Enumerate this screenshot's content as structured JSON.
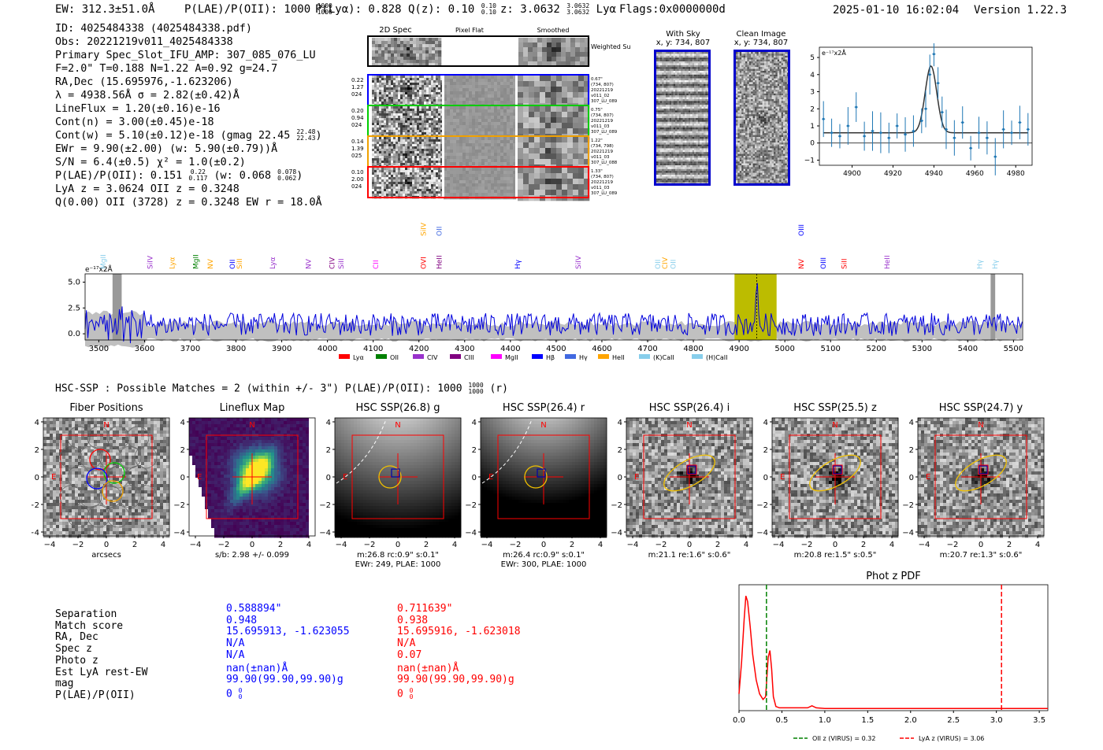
{
  "header": {
    "ew": "EW: 312.3±51.0Å",
    "plae_label": "P(LAE)/P(OII): 1000",
    "plae_sup": "1000",
    "plae_sub": "1000",
    "plya": "P(Lyα): 0.828",
    "qz_label": "Q(z): 0.10",
    "qz_sup": "0.10",
    "qz_sub": "0.10",
    "z_label": "z: 3.0632",
    "z_sup": "3.0632",
    "z_sub": "3.0632",
    "z_line": "Lyα",
    "flags": "Flags:0x0000000d",
    "datetime": "2025-01-10 16:02:04",
    "version": "Version 1.22.3"
  },
  "info": {
    "id": "ID: 4025484338 (4025484338.pdf)",
    "obs": "Obs: 20221219v011_4025484338",
    "primary": "Primary Spec_Slot_IFU_AMP: 307_085_076_LU",
    "fiber": "F=2.0\"  T=0.188  N=1.22  A=0.92  g=24.7",
    "radec": "RA,Dec (15.695976,-1.623206)",
    "lambda": "λ = 4938.56Å  σ = 2.82(±0.42)Å",
    "lineflux": "LineFlux = 1.20(±0.16)e-16",
    "contn": "Cont(n) = 3.00(±0.45)e-18",
    "contw": "Cont(w) = 5.10(±0.12)e-18 (gmag 22.45",
    "contw_sup": "22.48",
    "contw_sub": "22.43",
    "contw_end": ")",
    "ewr": "EWr = 9.90(±2.00) (w: 5.90(±0.79))Å",
    "sn": "S/N = 6.4(±0.5)  χ² = 1.0(±0.2)",
    "plae": "P(LAE)/P(OII): 0.151",
    "plae_sup": "0.22",
    "plae_sub": "0.117",
    "plae_w": "(w: 0.068",
    "plae_w_sup": "0.078",
    "plae_w_sub": "0.062",
    "plae_end": ")",
    "lya_z": "LyA z = 3.0624  OII z = 0.3248",
    "q": "Q(0.00) OII (3728) z = 0.3248  EW r = 18.0Å"
  },
  "spec2d": {
    "col_labels": [
      "2D Spec",
      "Pixel Flat",
      "Smoothed"
    ],
    "weighted": "Weighted Sum",
    "rows": [
      {
        "left": [
          "0.22",
          "1.27",
          "024"
        ],
        "right": [
          "0.67\"",
          "(734, 807)",
          "20221219",
          "v011_02",
          "307_LU_089"
        ],
        "color": "#0000ff"
      },
      {
        "left": [
          "0.20",
          "0.94",
          "024"
        ],
        "right": [
          "0.75\"",
          "(734, 807)",
          "20221219",
          "v011_03",
          "307_LU_089"
        ],
        "color": "#00cc00"
      },
      {
        "left": [
          "0.14",
          "1.39",
          "025"
        ],
        "right": [
          "1.22\"",
          "(734, 798)",
          "20221219",
          "v011_03",
          "307_LU_088"
        ],
        "color": "#f0a000"
      },
      {
        "left": [
          "0.10",
          "2.00",
          "024"
        ],
        "right": [
          "1.33\"",
          "(734, 807)",
          "20221219",
          "v011_03",
          "307_LU_089"
        ],
        "color": "#ff0000"
      }
    ]
  },
  "sky": {
    "with_sky": "With Sky",
    "with_sky_xy": "x, y: 734, 807",
    "clean": "Clean Image",
    "clean_xy": "x, y: 734, 807"
  },
  "zoom_spec": {
    "ylabel": "e⁻¹⁷x2Å",
    "xticks": [
      "4900",
      "4920",
      "4940",
      "4960",
      "4980"
    ],
    "yticks": [
      "5",
      "4",
      "3",
      "2",
      "1",
      "0",
      "−1"
    ]
  },
  "full_spec": {
    "ylabel": "e⁻¹⁷x2Å",
    "yticks": [
      "5.0",
      "2.5",
      "0.0"
    ],
    "xticks": [
      "3500",
      "3600",
      "3700",
      "3800",
      "3900",
      "4000",
      "4100",
      "4200",
      "4300",
      "4400",
      "4500",
      "4600",
      "4700",
      "4800",
      "4900",
      "5000",
      "5100",
      "5200",
      "5300",
      "5400",
      "5500"
    ],
    "legend": [
      {
        "label": "Lyα",
        "color": "#ff0000"
      },
      {
        "label": "OII",
        "color": "#008000"
      },
      {
        "label": "CIV",
        "color": "#9932cc"
      },
      {
        "label": "CIII",
        "color": "#800080"
      },
      {
        "label": "MgII",
        "color": "#ff00ff"
      },
      {
        "label": "Hβ",
        "color": "#0000ff"
      },
      {
        "label": "Hγ",
        "color": "#4169e1"
      },
      {
        "label": "HeII",
        "color": "#ffa500"
      },
      {
        "label": "(K)CaII",
        "color": "#87ceeb"
      },
      {
        "label": "(H)CaII",
        "color": "#87ceeb"
      }
    ],
    "lines": [
      {
        "label": "MgII",
        "wl": 3510,
        "color": "#87ceeb",
        "tier": 0
      },
      {
        "label": "SiIV",
        "wl": 3612,
        "color": "#9932cc",
        "tier": 0
      },
      {
        "label": "Lyα",
        "wl": 3660,
        "color": "#ffa500",
        "tier": 0
      },
      {
        "label": "MgII",
        "wl": 3712,
        "color": "#008000",
        "tier": 0
      },
      {
        "label": "NV",
        "wl": 3744,
        "color": "#ffa500",
        "tier": 0
      },
      {
        "label": "OII",
        "wl": 3792,
        "color": "#0000ff",
        "tier": 0
      },
      {
        "label": "SiII",
        "wl": 3808,
        "color": "#ffa500",
        "tier": 0
      },
      {
        "label": "Lyα",
        "wl": 3880,
        "color": "#9932cc",
        "tier": 0
      },
      {
        "label": "NV",
        "wl": 3958,
        "color": "#9932cc",
        "tier": 0
      },
      {
        "label": "CIV",
        "wl": 4010,
        "color": "#800080",
        "tier": 0
      },
      {
        "label": "SiII",
        "wl": 4030,
        "color": "#9932cc",
        "tier": 0
      },
      {
        "label": "CII",
        "wl": 4106,
        "color": "#ff00ff",
        "tier": 0
      },
      {
        "label": "SiIV",
        "wl": 4210,
        "color": "#ffa500",
        "tier": 2
      },
      {
        "label": "OVI",
        "wl": 4210,
        "color": "#ff0000",
        "tier": 0
      },
      {
        "label": "OII",
        "wl": 4244,
        "color": "#4169e1",
        "tier": 2
      },
      {
        "label": "HeII",
        "wl": 4244,
        "color": "#800080",
        "tier": 0
      },
      {
        "label": "Hγ",
        "wl": 4416,
        "color": "#0000ff",
        "tier": 0
      },
      {
        "label": "SiIV",
        "wl": 4548,
        "color": "#9932cc",
        "tier": 0
      },
      {
        "label": "OII",
        "wl": 4722,
        "color": "#87ceeb",
        "tier": 0
      },
      {
        "label": "CIV",
        "wl": 4738,
        "color": "#ffa500",
        "tier": 0
      },
      {
        "label": "OII",
        "wl": 4756,
        "color": "#87ceeb",
        "tier": 0
      },
      {
        "label": "OIII",
        "wl": 5036,
        "color": "#0000ff",
        "tier": 2
      },
      {
        "label": "NV",
        "wl": 5036,
        "color": "#ff0000",
        "tier": 0
      },
      {
        "label": "OIII",
        "wl": 5084,
        "color": "#0000ff",
        "tier": 0
      },
      {
        "label": "SiII",
        "wl": 5130,
        "color": "#ff0000",
        "tier": 0
      },
      {
        "label": "HeII",
        "wl": 5224,
        "color": "#9932cc",
        "tier": 0
      },
      {
        "label": "Hγ",
        "wl": 5426,
        "color": "#87ceeb",
        "tier": 0
      },
      {
        "label": "Hγ",
        "wl": 5460,
        "color": "#87ceeb",
        "tier": 0
      }
    ]
  },
  "hsc": {
    "title": "HSC-SSP : Possible Matches = 2 (within +/- 3\")  P(LAE)/P(OII): 1000",
    "title_sup": "1000",
    "title_sub": "1000",
    "title_end": "(r)",
    "panels": [
      {
        "title": "Fiber Positions",
        "caption1": "arcsecs",
        "caption2": ""
      },
      {
        "title": "Lineflux Map",
        "caption1": "s/b: 2.98 +/- 0.099",
        "caption2": ""
      },
      {
        "title": "HSC SSP(26.8) g",
        "caption1": "m:26.8 rc:0.9\"  s:0.1\"",
        "caption2": "EWr: 249, PLAE: 1000"
      },
      {
        "title": "HSC SSP(26.4) r",
        "caption1": "m:26.4 rc:0.9\"  s:0.1\"",
        "caption2": "EWr: 300, PLAE: 1000"
      },
      {
        "title": "HSC SSP(26.4) i",
        "caption1": "m:21.1  re:1.6\"  s:0.6\"",
        "caption2": ""
      },
      {
        "title": "HSC SSP(25.5) z",
        "caption1": "m:20.8  re:1.5\"  s:0.5\"",
        "caption2": ""
      },
      {
        "title": "HSC SSP(24.7) y",
        "caption1": "m:20.7  re:1.3\"  s:0.6\"",
        "caption2": ""
      }
    ],
    "ticks": [
      "4",
      "2",
      "0",
      "−2",
      "−4"
    ],
    "xticks": [
      "−4",
      "−2",
      "0",
      "2",
      "4"
    ],
    "north": "N",
    "east": "E"
  },
  "compare": {
    "labels": [
      "Separation",
      "Match score",
      "RA, Dec",
      "Spec z",
      "Photo z",
      "Est LyA rest-EW",
      "mag",
      "P(LAE)/P(OII)"
    ],
    "blue": [
      "0.588894\"",
      "0.948",
      "15.695913, -1.623055",
      "N/A",
      "N/A",
      "nan(±nan)Å",
      "99.90(99.90,99.90)g",
      "0"
    ],
    "red": [
      "0.711639\"",
      "0.938",
      "15.695916, -1.623018",
      "N/A",
      "0.07",
      "nan(±nan)Å",
      "99.90(99.90,99.90)g",
      "0"
    ],
    "zero": "0"
  },
  "colors": {
    "blue": "#0000ff",
    "red": "#ff0000",
    "spectrum": "#0000dd",
    "zoom": "#1f77b4",
    "band": "#bcbc00"
  },
  "chart_data": [
    {
      "type": "line",
      "title": "",
      "xlabel": "",
      "ylabel": "e-17x2Å",
      "xlim": [
        4884,
        4988
      ],
      "ylim": [
        -1.3,
        5.6
      ],
      "x": [
        4886,
        4890,
        4894,
        4898,
        4902,
        4906,
        4910,
        4914,
        4918,
        4922,
        4926,
        4930,
        4934,
        4936,
        4938,
        4940,
        4942,
        4944,
        4946,
        4950,
        4954,
        4958,
        4962,
        4966,
        4970,
        4974,
        4978,
        4982,
        4986
      ],
      "values": [
        1.4,
        0.6,
        0.4,
        1.0,
        2.1,
        0.4,
        0.7,
        0.6,
        0.3,
        1.0,
        0.5,
        0.7,
        1.3,
        2.0,
        4.0,
        5.2,
        3.5,
        1.8,
        0.8,
        0.3,
        1.2,
        -0.3,
        0.6,
        0.3,
        -0.8,
        0.8,
        0.6,
        1.2,
        0.8
      ],
      "fit": {
        "amplitude": 3.9,
        "center": 4938.56,
        "sigma": 2.82,
        "continuum": 0.6
      }
    },
    {
      "type": "line",
      "title": "",
      "xlabel": "Wavelength (Å)",
      "ylabel": "e-17x2Å",
      "xlim": [
        3470,
        5520
      ],
      "ylim": [
        -0.6,
        5.8
      ],
      "highlight_band": [
        4890,
        4982
      ],
      "line_center": 4938.56,
      "peak_value": 4.2,
      "noise_level": 1.0
    },
    {
      "type": "line",
      "title": "Phot z PDF",
      "xlabel": "",
      "ylabel": "",
      "xlim": [
        0.0,
        3.6
      ],
      "xticks": [
        "0.0",
        "0.5",
        "1.0",
        "1.5",
        "2.0",
        "2.5",
        "3.0",
        "3.5"
      ],
      "x": [
        0.0,
        0.03,
        0.06,
        0.08,
        0.1,
        0.13,
        0.16,
        0.2,
        0.24,
        0.28,
        0.31,
        0.34,
        0.36,
        0.38,
        0.4,
        0.43,
        0.47,
        0.55,
        0.7,
        0.8,
        0.85,
        0.9,
        1.0,
        1.5,
        2.0,
        2.5,
        3.0,
        3.5,
        3.6
      ],
      "values": [
        0.12,
        0.35,
        0.65,
        0.82,
        0.78,
        0.6,
        0.4,
        0.22,
        0.12,
        0.08,
        0.1,
        0.38,
        0.43,
        0.3,
        0.1,
        0.03,
        0.02,
        0.02,
        0.02,
        0.02,
        0.035,
        0.02,
        0.015,
        0.015,
        0.015,
        0.015,
        0.015,
        0.015,
        0.015
      ],
      "markers": [
        {
          "label": "OII z (VIRUS) = 0.32",
          "value": 0.32,
          "color": "#008000"
        },
        {
          "label": "LyA z (VIRUS) = 3.06",
          "value": 3.06,
          "color": "#ff0000"
        }
      ]
    }
  ]
}
